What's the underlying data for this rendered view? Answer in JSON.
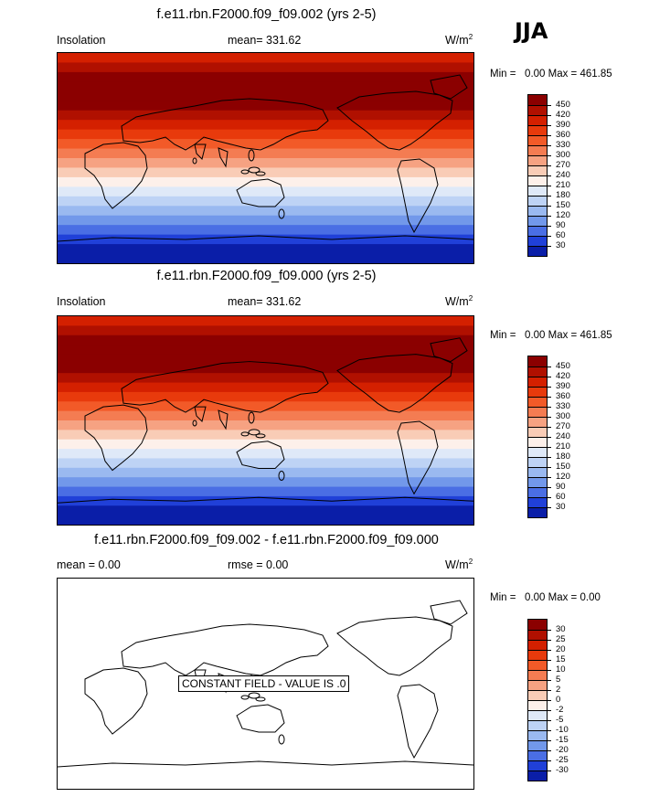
{
  "season": "JJA",
  "units_base": "W/m",
  "units_exp": "2",
  "panels": [
    {
      "title": "f.e11.rbn.F2000.f09_f09.002 (yrs 2-5)",
      "variable": "Insolation",
      "mean_text": "mean= 331.62",
      "min_label": "Min =",
      "min_value": "0.00",
      "max_label": "Max =",
      "max_value": "461.85"
    },
    {
      "title": "f.e11.rbn.F2000.f09_f09.000 (yrs 2-5)",
      "variable": "Insolation",
      "mean_text": "mean= 331.62",
      "min_label": "Min =",
      "min_value": "0.00",
      "max_label": "Max =",
      "max_value": "461.85"
    },
    {
      "title": "f.e11.rbn.F2000.f09_f09.002 - f.e11.rbn.F2000.f09_f09.000",
      "mean_text": "mean =   0.00",
      "rmse_text": "rmse =   0.00",
      "min_label": "Min =",
      "min_value": "0.00",
      "max_label": "Max =",
      "max_value": "0.00",
      "annotation": "CONSTANT FIELD - VALUE IS .0"
    }
  ],
  "colorbar_abs": {
    "labels": [
      "450",
      "420",
      "390",
      "360",
      "330",
      "300",
      "270",
      "240",
      "210",
      "180",
      "150",
      "120",
      "90",
      "60",
      "30"
    ],
    "colors": [
      "#8b0000",
      "#b01000",
      "#d42000",
      "#e83a0c",
      "#f25a28",
      "#f47c52",
      "#f6a282",
      "#f9ccb6",
      "#fdf0ea",
      "#dfe9f8",
      "#bed3f5",
      "#9ab9f0",
      "#7298ea",
      "#4a6ee4",
      "#2040d8",
      "#0a1ea8"
    ]
  },
  "colorbar_diff": {
    "labels": [
      "30",
      "25",
      "20",
      "15",
      "10",
      "5",
      "2",
      "0",
      "-2",
      "-5",
      "-10",
      "-15",
      "-20",
      "-25",
      "-30"
    ],
    "colors": [
      "#8b0000",
      "#b01000",
      "#d42000",
      "#e83a0c",
      "#f25a28",
      "#f47c52",
      "#f6a282",
      "#f9ccb6",
      "#fdf0ea",
      "#dfe9f8",
      "#bed3f5",
      "#9ab9f0",
      "#7298ea",
      "#4a6ee4",
      "#2040d8",
      "#0a1ea8"
    ]
  },
  "insolation_profile": {
    "band_index_from_north": [
      2,
      1,
      0,
      0,
      0,
      0,
      1,
      2,
      3,
      4,
      5,
      6,
      7,
      8,
      9,
      10,
      11,
      12,
      13,
      14,
      15,
      15
    ]
  }
}
